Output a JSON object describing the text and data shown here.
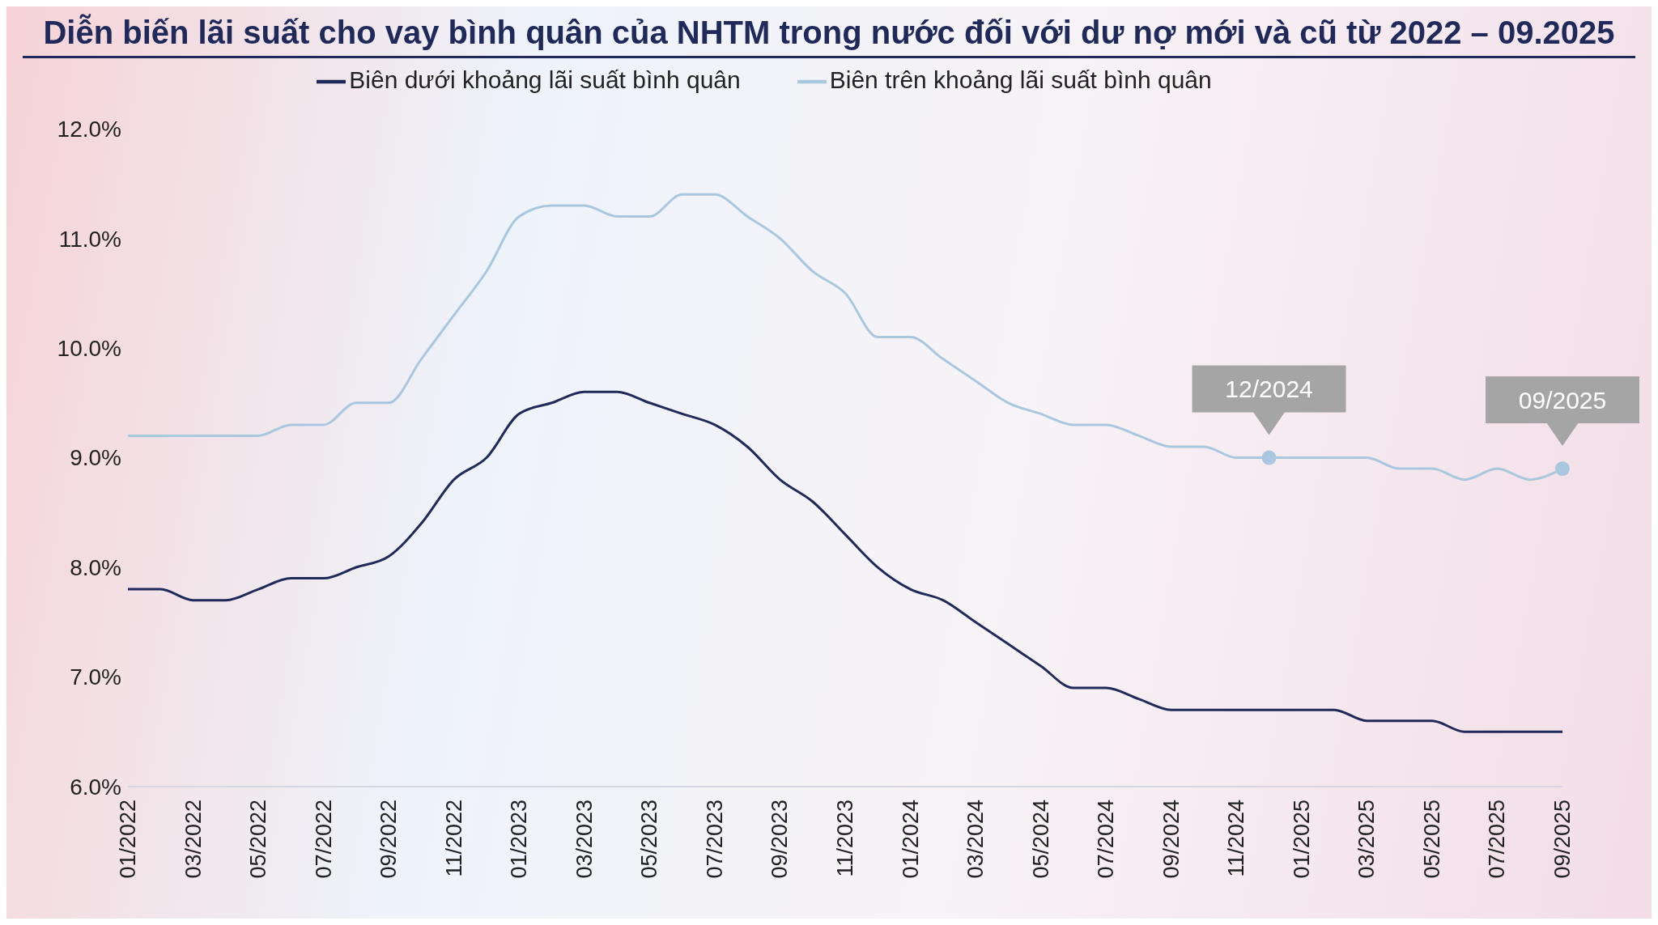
{
  "chart_data": {
    "type": "line",
    "title": "Diễn biến lãi suất cho vay bình quân của NHTM trong nước đối với dư nợ mới và cũ từ 2022 – 09.2025",
    "x": [
      "2022-01",
      "2022-02",
      "2022-03",
      "2022-04",
      "2022-05",
      "2022-06",
      "2022-07",
      "2022-08",
      "2022-09",
      "2022-10",
      "2022-11",
      "2022-12",
      "2023-01",
      "2023-02",
      "2023-03",
      "2023-04",
      "2023-05",
      "2023-06",
      "2023-07",
      "2023-08",
      "2023-09",
      "2023-10",
      "2023-11",
      "2023-12",
      "2024-01",
      "2024-02",
      "2024-03",
      "2024-04",
      "2024-05",
      "2024-06",
      "2024-07",
      "2024-08",
      "2024-09",
      "2024-10",
      "2024-11",
      "2024-12",
      "2025-01",
      "2025-02",
      "2025-03",
      "2025-04",
      "2025-05",
      "2025-06",
      "2025-07",
      "2025-08",
      "2025-09"
    ],
    "series": [
      {
        "name": "Biên dưới khoảng lãi suất bình quân",
        "color": "#1f2a5a",
        "values": [
          7.8,
          7.8,
          7.7,
          7.7,
          7.8,
          7.9,
          7.9,
          8.0,
          8.1,
          8.4,
          8.8,
          9.0,
          9.4,
          9.5,
          9.6,
          9.6,
          9.5,
          9.4,
          9.3,
          9.1,
          8.8,
          8.6,
          8.3,
          8.0,
          7.8,
          7.7,
          7.5,
          7.3,
          7.1,
          6.9,
          6.9,
          6.8,
          6.7,
          6.7,
          6.7,
          6.7,
          6.7,
          6.7,
          6.6,
          6.6,
          6.6,
          6.5,
          6.5,
          6.5,
          6.5
        ]
      },
      {
        "name": "Biên trên khoảng lãi suất bình quân",
        "color": "#a9c8df",
        "values": [
          9.2,
          9.2,
          9.2,
          9.2,
          9.2,
          9.3,
          9.3,
          9.5,
          9.5,
          9.9,
          10.3,
          10.7,
          11.2,
          11.3,
          11.3,
          11.2,
          11.2,
          11.4,
          11.4,
          11.2,
          11.0,
          10.7,
          10.5,
          10.1,
          10.1,
          9.9,
          9.7,
          9.5,
          9.4,
          9.3,
          9.3,
          9.2,
          9.1,
          9.1,
          9.0,
          9.0,
          9.0,
          9.0,
          9.0,
          8.9,
          8.9,
          8.8,
          8.9,
          8.8,
          8.9
        ]
      }
    ],
    "xlim": [
      "2022-01",
      "2025-09"
    ],
    "xticks": [
      {
        "value": "2022-01",
        "label": "01/2022"
      },
      {
        "value": "2022-03",
        "label": "03/2022"
      },
      {
        "value": "2022-05",
        "label": "05/2022"
      },
      {
        "value": "2022-07",
        "label": "07/2022"
      },
      {
        "value": "2022-09",
        "label": "09/2022"
      },
      {
        "value": "2022-11",
        "label": "11/2022"
      },
      {
        "value": "2023-01",
        "label": "01/2023"
      },
      {
        "value": "2023-03",
        "label": "03/2023"
      },
      {
        "value": "2023-05",
        "label": "05/2023"
      },
      {
        "value": "2023-07",
        "label": "07/2023"
      },
      {
        "value": "2023-09",
        "label": "09/2023"
      },
      {
        "value": "2023-11",
        "label": "11/2023"
      },
      {
        "value": "2024-01",
        "label": "01/2024"
      },
      {
        "value": "2024-03",
        "label": "03/2024"
      },
      {
        "value": "2024-05",
        "label": "05/2024"
      },
      {
        "value": "2024-07",
        "label": "07/2024"
      },
      {
        "value": "2024-09",
        "label": "09/2024"
      },
      {
        "value": "2024-11",
        "label": "11/2024"
      },
      {
        "value": "2025-01",
        "label": "01/2025"
      },
      {
        "value": "2025-03",
        "label": "03/2025"
      },
      {
        "value": "2025-05",
        "label": "05/2025"
      },
      {
        "value": "2025-07",
        "label": "07/2025"
      },
      {
        "value": "2025-09",
        "label": "09/2025"
      }
    ],
    "ylim": [
      6,
      12
    ],
    "yticks": [
      {
        "value": 6,
        "label": "6.0%"
      },
      {
        "value": 7,
        "label": "7.0%"
      },
      {
        "value": 8,
        "label": "8.0%"
      },
      {
        "value": 9,
        "label": "9.0%"
      },
      {
        "value": 10,
        "label": "10.0%"
      },
      {
        "value": 11,
        "label": "11.0%"
      },
      {
        "value": 12,
        "label": "12.0%"
      }
    ],
    "annotations": [
      {
        "text": "12/2024",
        "x": "2024-12",
        "y": 9.0
      },
      {
        "text": "09/2025",
        "x": "2025-09",
        "y": 8.9
      }
    ],
    "legend": "top",
    "grid": false,
    "marker": "none",
    "line_style": "solid"
  }
}
